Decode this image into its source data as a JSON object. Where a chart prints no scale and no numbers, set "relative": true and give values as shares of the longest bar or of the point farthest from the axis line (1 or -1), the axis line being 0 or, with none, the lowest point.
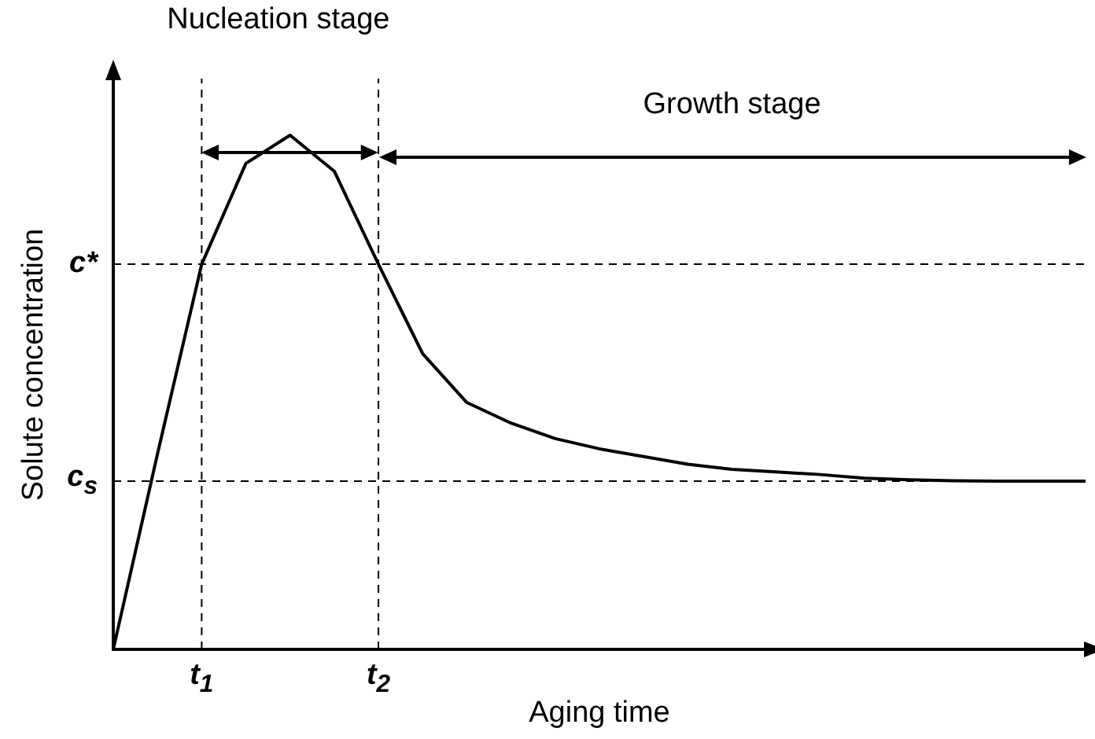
{
  "chart_data": {
    "type": "line",
    "relative": true,
    "xlabel": "Aging time",
    "ylabel": "Solute concentration",
    "marker": "none",
    "line_style": "solid",
    "categories": [
      null,
      null,
      "t$_{1}$",
      null,
      null,
      null,
      "t$_{2}$",
      null,
      null,
      null,
      null,
      null,
      null,
      null,
      null,
      null,
      null,
      null,
      null,
      null,
      null,
      null,
      null
    ],
    "series": [
      {
        "color": "#000000",
        "values": [
          0,
          0.38,
          0.749,
          0.945,
          1,
          0.93,
          0.749,
          0.575,
          0.48,
          0.44,
          0.41,
          0.39,
          0.375,
          0.36,
          0.35,
          0.345,
          0.34,
          0.333,
          0.33,
          0.328,
          0.327,
          0.327,
          0.327
        ]
      }
    ],
    "ref_lines": [
      {
        "axis": "y",
        "value": 0.749,
        "label": "c*",
        "line_style": "dashed"
      },
      {
        "axis": "y",
        "value": 0.327,
        "label": "c$_{s}$",
        "line_style": "dashed"
      },
      {
        "axis": "x",
        "value": "t$_{1}$",
        "line_style": "dashed"
      },
      {
        "axis": "x",
        "value": "t$_{2}$",
        "line_style": "dashed"
      }
    ],
    "annotations": [
      "Nucleation stage",
      "Growth stage"
    ]
  }
}
